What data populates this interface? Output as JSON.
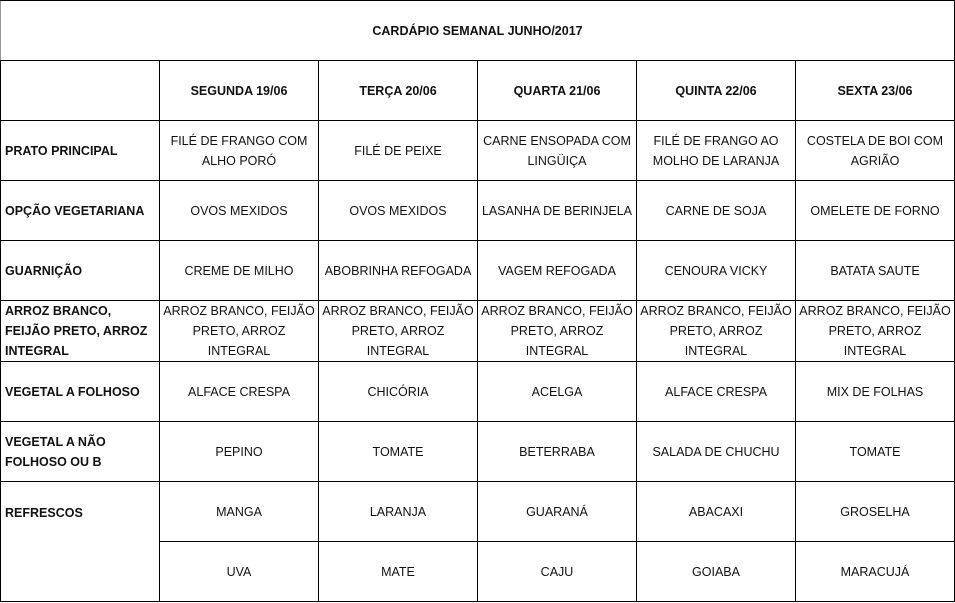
{
  "title": "CARDÁPIO SEMANAL JUNHO/2017",
  "days": [
    "SEGUNDA  19/06",
    "TERÇA  20/06",
    "QUARTA 21/06",
    "QUINTA 22/06",
    "SEXTA 23/06"
  ],
  "rows": [
    {
      "label": "PRATO PRINCIPAL",
      "cells": [
        "FILÉ DE FRANGO COM ALHO PORÓ",
        "FILÉ DE PEIXE",
        "CARNE ENSOPADA COM LINGÜIÇA",
        "FILÉ DE FRANGO AO MOLHO DE LARANJA",
        "COSTELA DE BOI COM AGRIÃO"
      ]
    },
    {
      "label": "OPÇÃO VEGETARIANA",
      "cells": [
        "OVOS MEXIDOS",
        "OVOS MEXIDOS",
        "LASANHA DE BERINJELA",
        "CARNE DE SOJA",
        "OMELETE DE FORNO"
      ]
    },
    {
      "label": "GUARNIÇÃO",
      "cells": [
        "CREME DE MILHO",
        "ABOBRINHA REFOGADA",
        "VAGEM REFOGADA",
        "CENOURA VICKY",
        "BATATA SAUTE"
      ]
    },
    {
      "label": "ARROZ BRANCO, FEIJÃO PRETO, ARROZ INTEGRAL",
      "cells": [
        "ARROZ BRANCO, FEIJÃO PRETO, ARROZ INTEGRAL",
        "ARROZ BRANCO, FEIJÃO PRETO, ARROZ INTEGRAL",
        "ARROZ BRANCO, FEIJÃO PRETO, ARROZ INTEGRAL",
        "ARROZ BRANCO, FEIJÃO PRETO, ARROZ INTEGRAL",
        "ARROZ BRANCO, FEIJÃO PRETO, ARROZ INTEGRAL"
      ]
    },
    {
      "label": "VEGETAL A FOLHOSO",
      "cells": [
        "ALFACE CRESPA",
        "CHICÓRIA",
        "ACELGA",
        "ALFACE CRESPA",
        "MIX DE FOLHAS"
      ]
    },
    {
      "label": "VEGETAL A NÃO FOLHOSO OU B",
      "cells": [
        "PEPINO",
        "TOMATE",
        "BETERRABA",
        "SALADA DE CHUCHU",
        "TOMATE"
      ]
    },
    {
      "label": "REFRESCOS",
      "cells": [
        "MANGA",
        "LARANJA",
        "GUARANÁ",
        "ABACAXI",
        "GROSELHA"
      ]
    },
    {
      "label": "",
      "cells": [
        "UVA",
        "MATE",
        "CAJU",
        "GOIABA",
        "MARACUJÁ"
      ]
    }
  ]
}
